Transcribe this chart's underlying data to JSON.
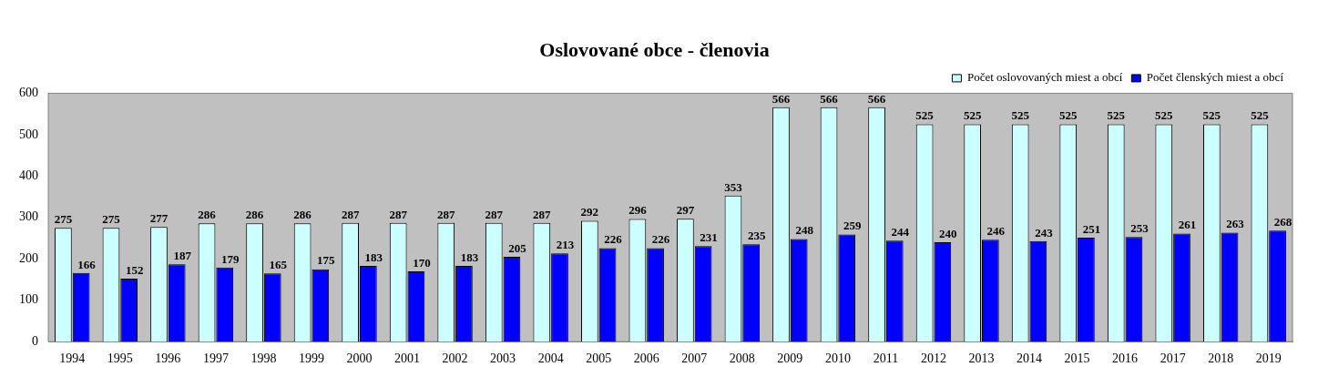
{
  "chart_data": {
    "type": "bar",
    "title": "Oslovované obce - členovia",
    "categories": [
      "1994",
      "1995",
      "1996",
      "1997",
      "1998",
      "1999",
      "2000",
      "2001",
      "2002",
      "2003",
      "2004",
      "2005",
      "2006",
      "2007",
      "2008",
      "2009",
      "2010",
      "2011",
      "2012",
      "2013",
      "2014",
      "2015",
      "2016",
      "2017",
      "2018",
      "2019"
    ],
    "series": [
      {
        "name": "Počet oslovovaných miest a obcí",
        "color": "#ccffff",
        "values": [
          275,
          275,
          277,
          286,
          286,
          286,
          287,
          287,
          287,
          287,
          287,
          292,
          296,
          297,
          353,
          566,
          566,
          566,
          525,
          525,
          525,
          525,
          525,
          525,
          525,
          525
        ]
      },
      {
        "name": "Počet členských miest a obcí",
        "color": "#0000ff",
        "values": [
          166,
          152,
          187,
          179,
          165,
          175,
          183,
          170,
          183,
          205,
          213,
          226,
          226,
          231,
          235,
          248,
          259,
          244,
          240,
          246,
          243,
          251,
          253,
          261,
          263,
          268
        ]
      }
    ],
    "ylim": [
      0,
      600
    ],
    "yticks": [
      0,
      100,
      200,
      300,
      400,
      500,
      600
    ],
    "grid": false,
    "legend": "top right",
    "data_labels": true
  }
}
